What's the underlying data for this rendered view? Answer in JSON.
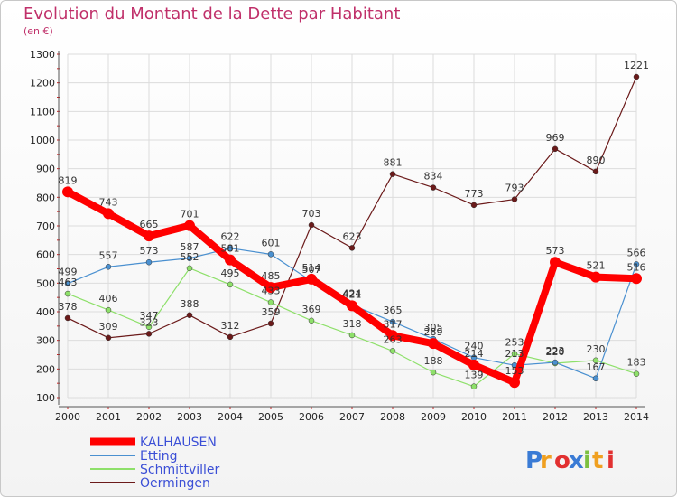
{
  "chart_data": {
    "type": "line",
    "title": "Evolution du Montant de la Dette par Habitant",
    "subtitle": "(en €)",
    "x": [
      "2000",
      "2001",
      "2002",
      "2003",
      "2004",
      "2005",
      "2006",
      "2007",
      "2008",
      "2009",
      "2010",
      "2011",
      "2012",
      "2013",
      "2014"
    ],
    "yticks": [
      100,
      200,
      300,
      400,
      500,
      600,
      700,
      800,
      900,
      1000,
      1100,
      1200,
      1300
    ],
    "ylim": [
      100,
      1300
    ],
    "grid": true,
    "legend_position": "bottom-left",
    "series": [
      {
        "name": "KALHAUSEN",
        "color": "#ff0000",
        "values": [
          819,
          743,
          665,
          701,
          581,
          485,
          514,
          421,
          317,
          289,
          214,
          153,
          573,
          521,
          516
        ],
        "labels": [
          "819",
          "743",
          "665",
          "701",
          "581",
          "485",
          "514",
          "421",
          "317",
          "289",
          "214",
          "153",
          "573",
          "521",
          "516"
        ]
      },
      {
        "name": "Etting",
        "color": "#4a90d0",
        "values": [
          499,
          557,
          573,
          587,
          622,
          601,
          507,
          424,
          365,
          305,
          240,
          213,
          223,
          167,
          566
        ],
        "labels": [
          "499",
          "557",
          "573",
          "587",
          "622",
          "601",
          "507",
          "424",
          "365",
          "305",
          "240",
          "213",
          "223",
          "167",
          "566"
        ]
      },
      {
        "name": "Schmittviller",
        "color": "#8ee06a",
        "values": [
          463,
          406,
          347,
          552,
          495,
          433,
          369,
          318,
          263,
          188,
          139,
          253,
          220,
          230,
          183
        ],
        "labels": [
          "463",
          "406",
          "347",
          "552",
          "495",
          "433",
          "369",
          "318",
          "263",
          "188",
          "139",
          "253",
          "220",
          "230",
          "183"
        ]
      },
      {
        "name": "Oermingen",
        "color": "#6b1a1a",
        "values": [
          378,
          309,
          323,
          388,
          312,
          359,
          703,
          623,
          881,
          834,
          773,
          793,
          969,
          890,
          1221
        ],
        "labels": [
          "378",
          "309",
          "323",
          "388",
          "312",
          "359",
          "703",
          "623",
          "881",
          "834",
          "773",
          "793",
          "969",
          "890",
          "1221"
        ]
      }
    ]
  },
  "watermark": "Proxiti"
}
